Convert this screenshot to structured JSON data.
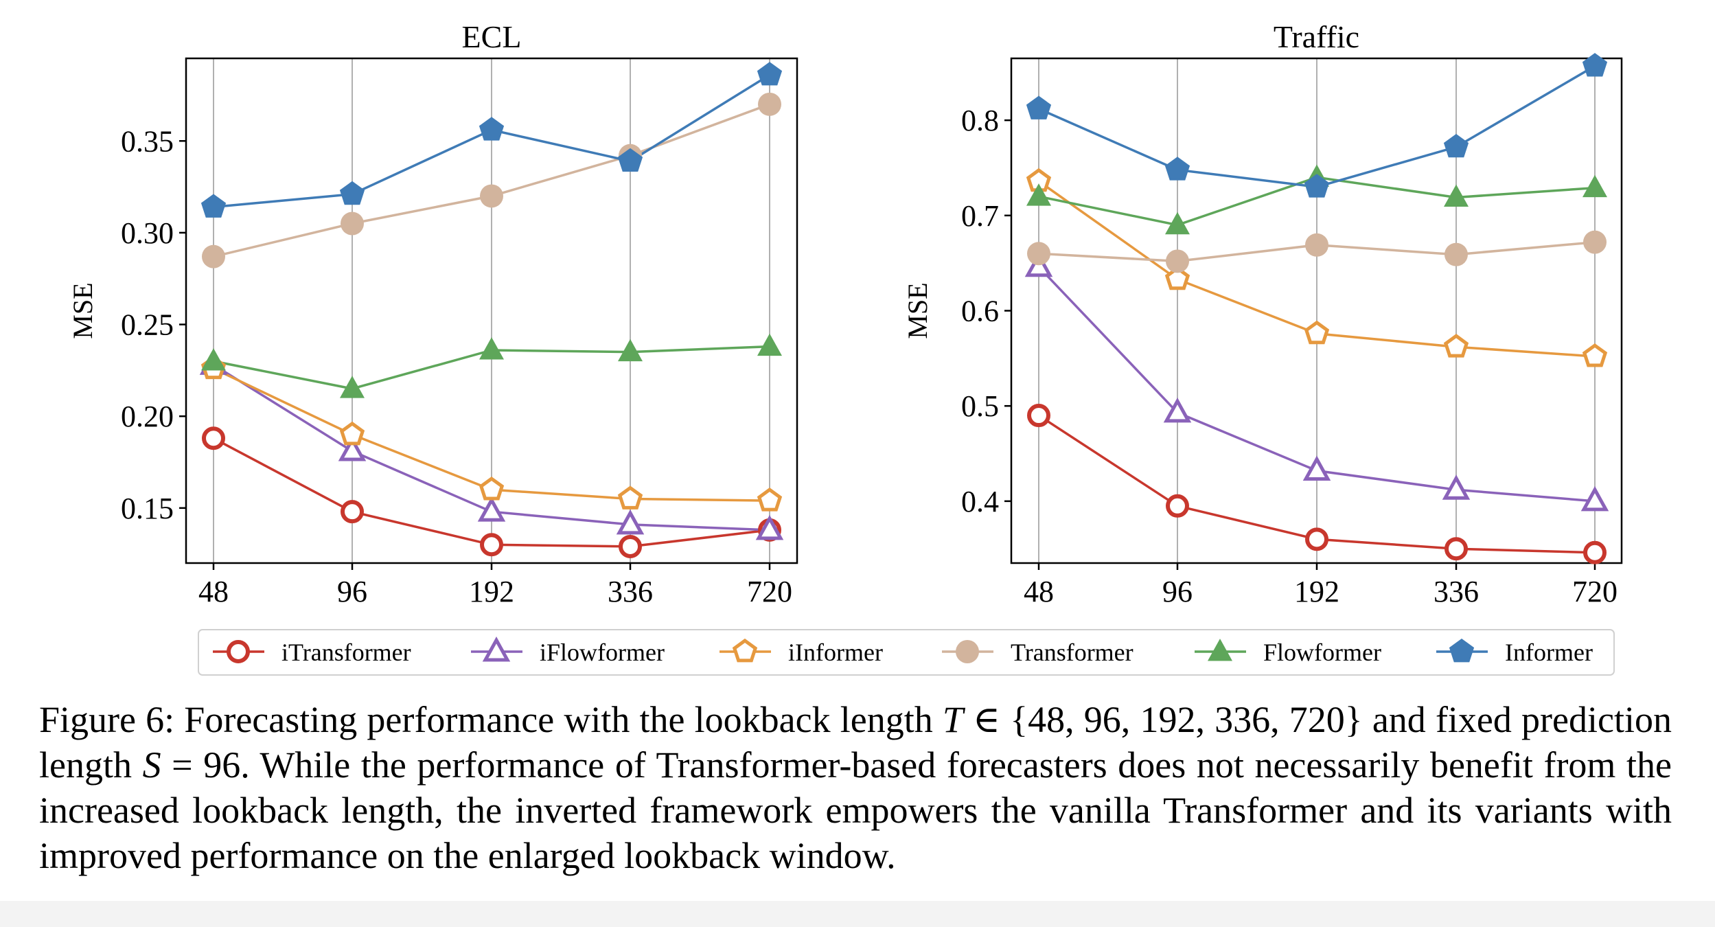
{
  "chart_data": [
    {
      "type": "line",
      "title": "ECL",
      "ylabel": "MSE",
      "xlabel": "",
      "categories": [
        "48",
        "96",
        "192",
        "336",
        "720"
      ],
      "ylim": [
        0.12,
        0.395
      ],
      "yticks": [
        "0.15",
        "0.20",
        "0.25",
        "0.30",
        "0.35"
      ],
      "grid": "vertical",
      "series": [
        {
          "name": "iTransformer",
          "values": [
            0.188,
            0.148,
            0.13,
            0.129,
            0.138
          ]
        },
        {
          "name": "iFlowformer",
          "values": [
            0.228,
            0.181,
            0.148,
            0.141,
            0.138
          ]
        },
        {
          "name": "iInformer",
          "values": [
            0.226,
            0.19,
            0.16,
            0.155,
            0.154
          ]
        },
        {
          "name": "Transformer",
          "values": [
            0.287,
            0.305,
            0.32,
            0.342,
            0.37
          ]
        },
        {
          "name": "Flowformer",
          "values": [
            0.23,
            0.215,
            0.236,
            0.235,
            0.238
          ]
        },
        {
          "name": "Informer",
          "values": [
            0.314,
            0.321,
            0.356,
            0.339,
            0.386
          ]
        }
      ]
    },
    {
      "type": "line",
      "title": "Traffic",
      "ylabel": "MSE",
      "xlabel": "",
      "categories": [
        "48",
        "96",
        "192",
        "336",
        "720"
      ],
      "ylim": [
        0.335,
        0.865
      ],
      "yticks": [
        "0.4",
        "0.5",
        "0.6",
        "0.7",
        "0.8"
      ],
      "grid": "vertical",
      "series": [
        {
          "name": "iTransformer",
          "values": [
            0.49,
            0.395,
            0.36,
            0.35,
            0.346
          ]
        },
        {
          "name": "iFlowformer",
          "values": [
            0.646,
            0.493,
            0.432,
            0.412,
            0.4
          ]
        },
        {
          "name": "iInformer",
          "values": [
            0.736,
            0.633,
            0.576,
            0.562,
            0.552
          ]
        },
        {
          "name": "Transformer",
          "values": [
            0.66,
            0.652,
            0.669,
            0.659,
            0.672
          ]
        },
        {
          "name": "Flowformer",
          "values": [
            0.72,
            0.69,
            0.74,
            0.719,
            0.729
          ]
        },
        {
          "name": "Informer",
          "values": [
            0.812,
            0.748,
            0.73,
            0.772,
            0.857
          ]
        }
      ]
    }
  ],
  "series_styles": [
    {
      "name": "iTransformer",
      "color": "#c8372d",
      "marker": "circle-open"
    },
    {
      "name": "iFlowformer",
      "color": "#8a62b9",
      "marker": "triangle-open"
    },
    {
      "name": "iInformer",
      "color": "#e6993f",
      "marker": "pentagon-open"
    },
    {
      "name": "Transformer",
      "color": "#d2b49d",
      "marker": "circle-filled"
    },
    {
      "name": "Flowformer",
      "color": "#5ea65a",
      "marker": "triangle-filled"
    },
    {
      "name": "Informer",
      "color": "#3f7bb6",
      "marker": "pentagon-filled"
    }
  ],
  "legend": {
    "placement": "bottom-center",
    "entries": [
      "iTransformer",
      "iFlowformer",
      "iInformer",
      "Transformer",
      "Flowformer",
      "Informer"
    ]
  },
  "caption": {
    "label": "Figure 6:",
    "text_a": " Forecasting performance with the lookback length ",
    "math_T": "T",
    "text_b": " ∈ {48, 96, 192, 336, 720} and fixed prediction length ",
    "math_S": "S",
    "text_c": " = 96.  While the performance of Transformer-based forecasters does not necessarily benefit from the increased lookback length, the inverted framework empowers the vanilla Transformer and its variants with improved performance on the enlarged lookback window."
  }
}
